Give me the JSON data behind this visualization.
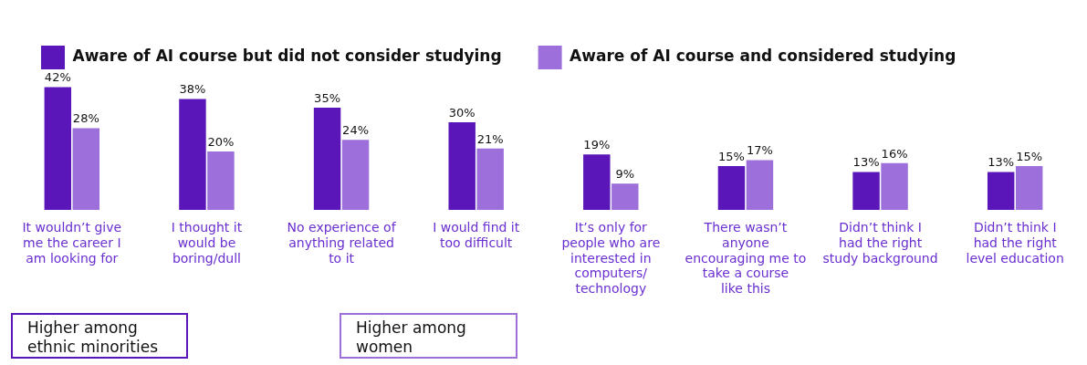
{
  "chart_data": {
    "type": "bar",
    "categories": [
      "It wouldn’t give me the career I am looking for",
      "I thought it would be boring/dull",
      "No experience of anything related to it",
      "I would find it too difficult",
      "It’s only for people who are interested in computers/ technology",
      "There wasn’t anyone encouraging me to take a course like this",
      "Didn’t think I had the right study background",
      "Didn’t think I had the right level education"
    ],
    "series": [
      {
        "name": "Aware of AI course but did not consider studying",
        "color": "#5a16b8",
        "values": [
          42,
          38,
          35,
          30,
          19,
          15,
          13,
          13
        ],
        "value_labels": [
          "42%",
          "38%",
          "35%",
          "30%",
          "19%",
          "15%",
          "13%",
          "13%"
        ]
      },
      {
        "name": "Aware of AI course and considered studying",
        "color": "#9c6fda",
        "values": [
          28,
          20,
          24,
          21,
          9,
          17,
          16,
          15
        ],
        "value_labels": [
          "28%",
          "20%",
          "24%",
          "21%",
          "9%",
          "17%",
          "16%",
          "15%"
        ]
      }
    ],
    "legend": "top",
    "grid": false,
    "annotations": [
      "Higher among ethnic minorities",
      "Higher among women"
    ]
  }
}
